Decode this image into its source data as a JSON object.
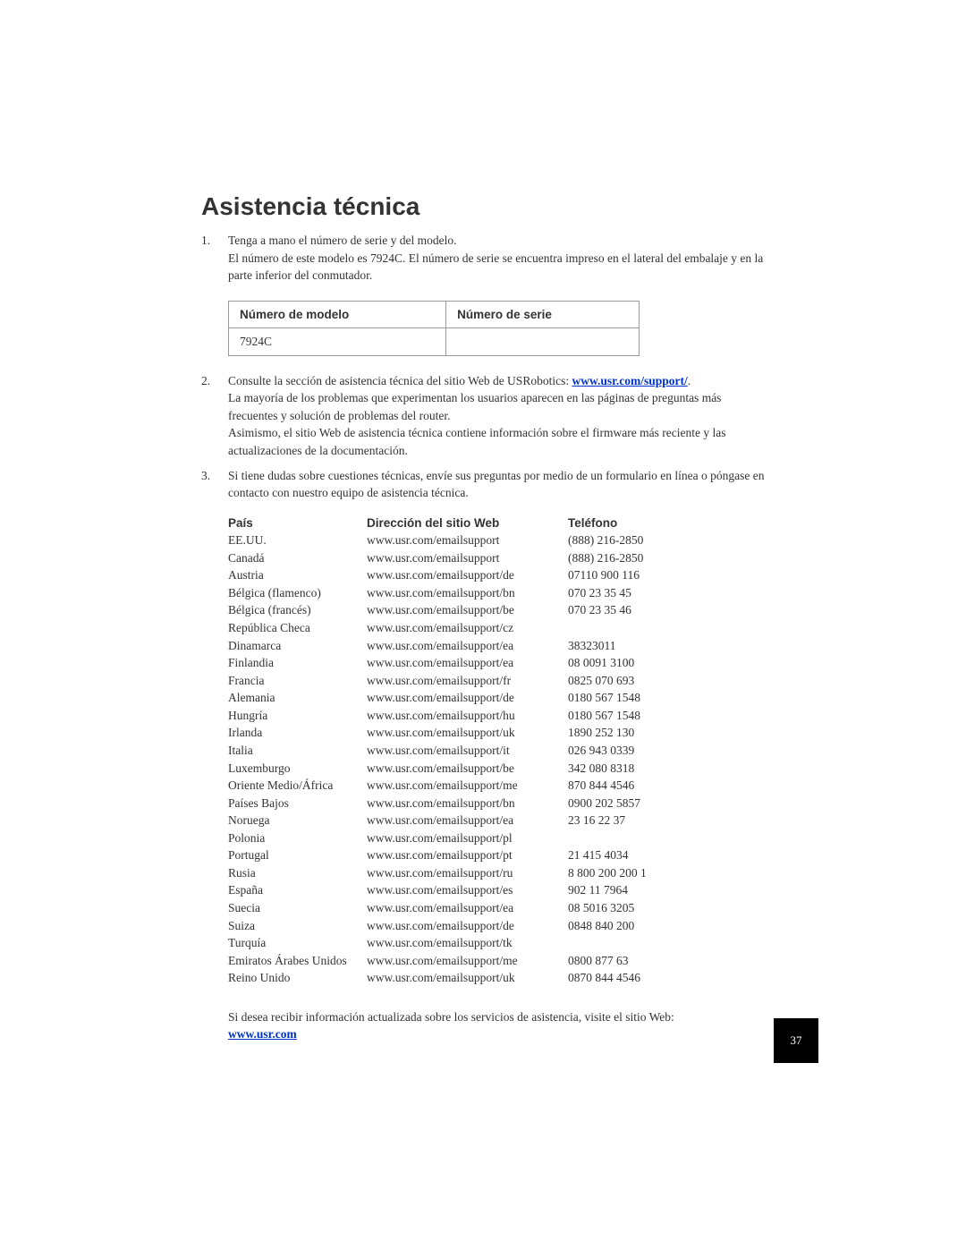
{
  "title": "Asistencia técnica",
  "list": {
    "item1": {
      "num": "1.",
      "line1": "Tenga a mano el número de serie y del modelo.",
      "line2": "El número de este modelo es 7924C. El número de serie se encuentra impreso en el lateral del embalaje y en la parte inferior del conmutador."
    },
    "item2": {
      "num": "2.",
      "prefix": "Consulte la sección de asistencia técnica del sitio Web de USRobotics: ",
      "link": "www.usr.com/support/",
      "line2": "La mayoría de los problemas que experimentan los usuarios aparecen en las páginas de preguntas más frecuentes y solución de problemas del router.",
      "line3": "Asimismo, el sitio Web de asistencia técnica contiene información sobre el firmware más reciente y las actualizaciones de la documentación."
    },
    "item3": {
      "num": "3.",
      "text": "Si tiene dudas sobre cuestiones técnicas, envíe sus preguntas por medio de un formulario en línea o póngase en contacto con nuestro equipo de asistencia técnica."
    }
  },
  "modelTable": {
    "h1": "Número de modelo",
    "h2": "Número de serie",
    "v1": "7924C",
    "v2": ""
  },
  "supportHeader": {
    "pais": "País",
    "web": "Dirección del sitio Web",
    "tel": "Teléfono"
  },
  "support": [
    {
      "pais": "EE.UU.",
      "web": "www.usr.com/emailsupport",
      "tel": "(888) 216-2850"
    },
    {
      "pais": "Canadá",
      "web": "www.usr.com/emailsupport",
      "tel": "(888) 216-2850"
    },
    {
      "pais": "Austria",
      "web": "www.usr.com/emailsupport/de",
      "tel": "07110 900 116"
    },
    {
      "pais": "Bélgica (flamenco)",
      "web": "www.usr.com/emailsupport/bn",
      "tel": "070 23 35 45"
    },
    {
      "pais": "Bélgica (francés)",
      "web": "www.usr.com/emailsupport/be",
      "tel": "070 23 35 46"
    },
    {
      "pais": "República Checa",
      "web": "www.usr.com/emailsupport/cz",
      "tel": ""
    },
    {
      "pais": "Dinamarca",
      "web": "www.usr.com/emailsupport/ea",
      "tel": "38323011"
    },
    {
      "pais": "Finlandia",
      "web": "www.usr.com/emailsupport/ea",
      "tel": "08 0091 3100"
    },
    {
      "pais": "Francia",
      "web": "www.usr.com/emailsupport/fr",
      "tel": "0825 070 693"
    },
    {
      "pais": "Alemania",
      "web": "www.usr.com/emailsupport/de",
      "tel": "0180 567 1548"
    },
    {
      "pais": "Hungría",
      "web": "www.usr.com/emailsupport/hu",
      "tel": "0180 567 1548"
    },
    {
      "pais": "Irlanda",
      "web": "www.usr.com/emailsupport/uk",
      "tel": "1890 252 130"
    },
    {
      "pais": "Italia",
      "web": "www.usr.com/emailsupport/it",
      "tel": "026 943 0339"
    },
    {
      "pais": "Luxemburgo",
      "web": "www.usr.com/emailsupport/be",
      "tel": "342 080 8318"
    },
    {
      "pais": "Oriente Medio/África",
      "web": "www.usr.com/emailsupport/me",
      "tel": "870 844 4546"
    },
    {
      "pais": "Países Bajos",
      "web": "www.usr.com/emailsupport/bn",
      "tel": "0900 202 5857"
    },
    {
      "pais": "Noruega",
      "web": "www.usr.com/emailsupport/ea",
      "tel": "23 16 22 37"
    },
    {
      "pais": "Polonia",
      "web": "www.usr.com/emailsupport/pl",
      "tel": ""
    },
    {
      "pais": "Portugal",
      "web": "www.usr.com/emailsupport/pt",
      "tel": "21 415 4034"
    },
    {
      "pais": "Rusia",
      "web": "www.usr.com/emailsupport/ru",
      "tel": "8 800 200 200 1"
    },
    {
      "pais": "España",
      "web": "www.usr.com/emailsupport/es",
      "tel": "902 11 7964"
    },
    {
      "pais": "Suecia",
      "web": "www.usr.com/emailsupport/ea",
      "tel": "08 5016 3205"
    },
    {
      "pais": "Suiza",
      "web": "www.usr.com/emailsupport/de",
      "tel": "0848 840 200"
    },
    {
      "pais": "Turquía",
      "web": "www.usr.com/emailsupport/tk",
      "tel": ""
    },
    {
      "pais": "Emiratos Árabes Unidos",
      "web": "www.usr.com/emailsupport/me",
      "tel": "0800 877 63"
    },
    {
      "pais": "Reino Unido",
      "web": "www.usr.com/emailsupport/uk",
      "tel": "0870 844 4546"
    }
  ],
  "footer": {
    "text": "Si desea recibir información actualizada sobre los servicios de asistencia, visite el sitio Web:",
    "link": "www.usr.com"
  },
  "pageNumber": "37"
}
